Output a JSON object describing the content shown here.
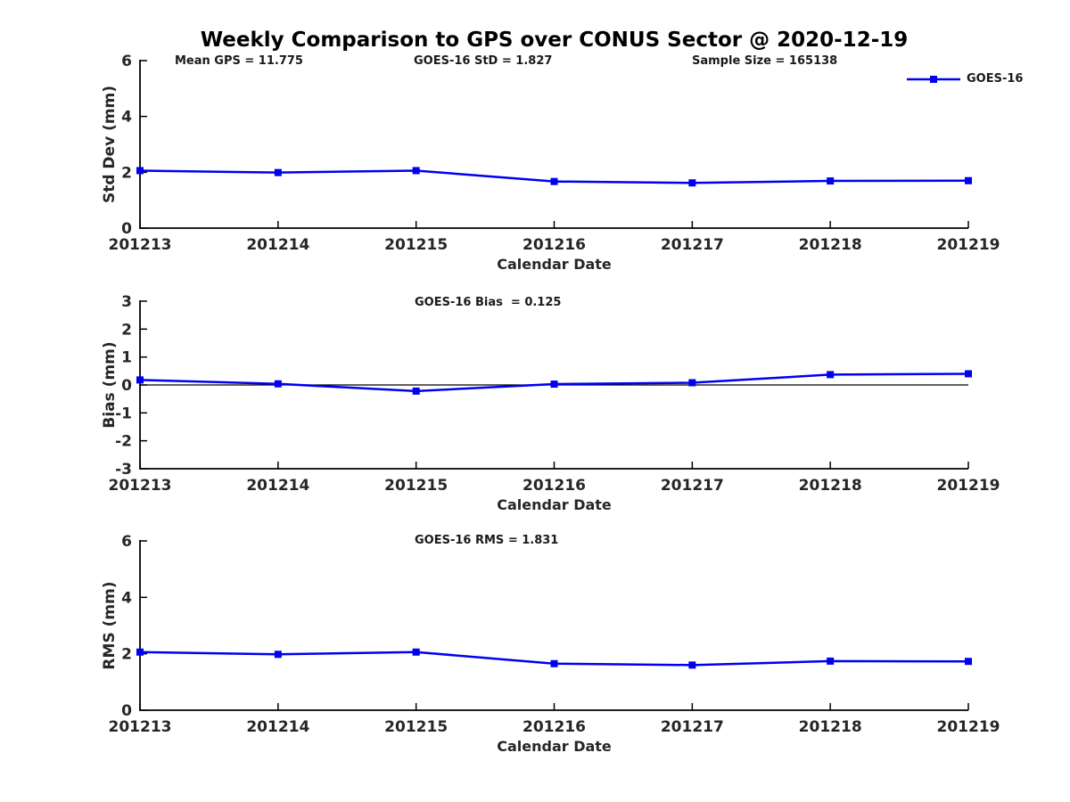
{
  "title": "Weekly Comparison to GPS over CONUS Sector @ 2020-12-19",
  "legend": {
    "label": "GOES-16"
  },
  "colors": {
    "line": "#0000EE",
    "axis": "#000000",
    "text": "#262626",
    "zero_line": "#000000"
  },
  "chart_data": [
    {
      "type": "line",
      "ylabel": "Std Dev (mm)",
      "xlabel": "Calendar Date",
      "categories": [
        "201213",
        "201214",
        "201215",
        "201216",
        "201217",
        "201218",
        "201219"
      ],
      "series": [
        {
          "name": "GOES-16",
          "values": [
            2.06,
            1.99,
            2.06,
            1.67,
            1.62,
            1.69,
            1.7
          ]
        }
      ],
      "ylim": [
        0,
        6
      ],
      "yticks": [
        0,
        2,
        4,
        6
      ],
      "grid": false,
      "zero_line": false,
      "legend_position": "top-right",
      "annotations": [
        {
          "text": "Mean GPS = 11.775"
        },
        {
          "text": "GOES-16 StD = 1.827"
        },
        {
          "text": "Sample Size = 165138"
        }
      ]
    },
    {
      "type": "line",
      "ylabel": "Bias (mm)",
      "xlabel": "Calendar Date",
      "categories": [
        "201213",
        "201214",
        "201215",
        "201216",
        "201217",
        "201218",
        "201219"
      ],
      "series": [
        {
          "name": "GOES-16",
          "values": [
            0.18,
            0.04,
            -0.22,
            0.03,
            0.08,
            0.37,
            0.4
          ]
        }
      ],
      "ylim": [
        -3,
        3
      ],
      "yticks": [
        -3,
        -2,
        -1,
        0,
        1,
        2,
        3
      ],
      "grid": false,
      "zero_line": true,
      "annotations": [
        {
          "text": "GOES-16 Bias  = 0.125"
        }
      ]
    },
    {
      "type": "line",
      "ylabel": "RMS (mm)",
      "xlabel": "Calendar Date",
      "categories": [
        "201213",
        "201214",
        "201215",
        "201216",
        "201217",
        "201218",
        "201219"
      ],
      "series": [
        {
          "name": "GOES-16",
          "values": [
            2.06,
            1.98,
            2.06,
            1.65,
            1.6,
            1.74,
            1.73
          ]
        }
      ],
      "ylim": [
        0,
        6
      ],
      "yticks": [
        0,
        2,
        4,
        6
      ],
      "grid": false,
      "zero_line": false,
      "annotations": [
        {
          "text": "GOES-16 RMS = 1.831"
        }
      ]
    }
  ]
}
